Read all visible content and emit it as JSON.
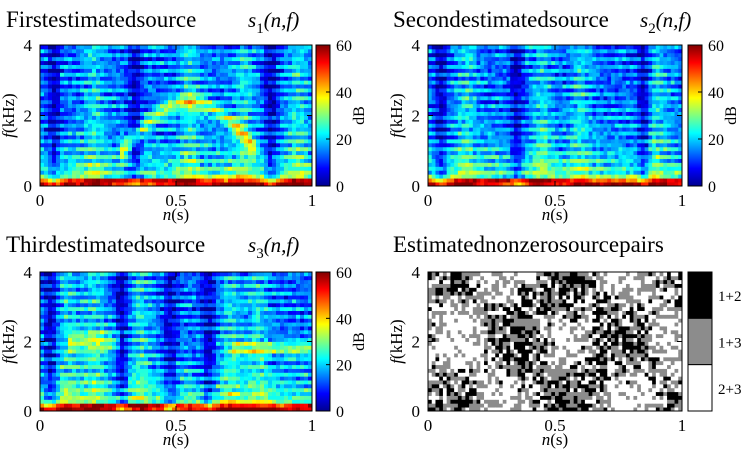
{
  "chart_data": [
    {
      "type": "heatmap",
      "panel": "first",
      "title": "Firstestimatedsource",
      "symbol": {
        "var": "s",
        "sub": "1",
        "args": "(n,f)"
      },
      "xlabel": "n(s)",
      "ylabel": "f(kHz)",
      "xlim": [
        0,
        1
      ],
      "ylim": [
        0,
        4
      ],
      "xticks": [
        "0",
        "0.5",
        "1"
      ],
      "yticks": [
        "0",
        "2",
        "4"
      ],
      "colorbar": {
        "label": "dB",
        "range": [
          0,
          60
        ],
        "ticks": [
          "0",
          "20",
          "40",
          "60"
        ],
        "colormap": "jet"
      }
    },
    {
      "type": "heatmap",
      "panel": "second",
      "title": "Secondestimatedsource",
      "symbol": {
        "var": "s",
        "sub": "2",
        "args": "(n,f)"
      },
      "xlabel": "n(s)",
      "ylabel": "f(kHz)",
      "xlim": [
        0,
        1
      ],
      "ylim": [
        0,
        4
      ],
      "xticks": [
        "0",
        "0.5",
        "1"
      ],
      "yticks": [
        "0",
        "2",
        "4"
      ],
      "colorbar": {
        "label": "dB",
        "range": [
          0,
          60
        ],
        "ticks": [
          "0",
          "20",
          "40",
          "60"
        ],
        "colormap": "jet"
      }
    },
    {
      "type": "heatmap",
      "panel": "third",
      "title": "Thirdestimatedsource",
      "symbol": {
        "var": "s",
        "sub": "3",
        "args": "(n,f)"
      },
      "xlabel": "n(s)",
      "ylabel": "f(kHz)",
      "xlim": [
        0,
        1
      ],
      "ylim": [
        0,
        4
      ],
      "xticks": [
        "0",
        "0.5",
        "1"
      ],
      "yticks": [
        "0",
        "2",
        "4"
      ],
      "colorbar": {
        "label": "dB",
        "range": [
          0,
          60
        ],
        "ticks": [
          "0",
          "20",
          "40",
          "60"
        ],
        "colormap": "jet"
      }
    },
    {
      "type": "heatmap",
      "panel": "pairs",
      "title": "Estimatednonzerosourcepairs",
      "xlabel": "n(s)",
      "ylabel": "f(kHz)",
      "xlim": [
        0,
        1
      ],
      "ylim": [
        0,
        4
      ],
      "xticks": [
        "0",
        "0.5",
        "1"
      ],
      "yticks": [
        "0",
        "2",
        "4"
      ],
      "categories": [
        {
          "label": "1+2",
          "color": "#000000"
        },
        {
          "label": "1+3",
          "color": "#8c8c8c"
        },
        {
          "label": "2+3",
          "color": "#ffffff"
        }
      ]
    }
  ],
  "colors": {
    "jet_low": "#00008f",
    "jet_high": "#800000",
    "axis": "#000000"
  }
}
